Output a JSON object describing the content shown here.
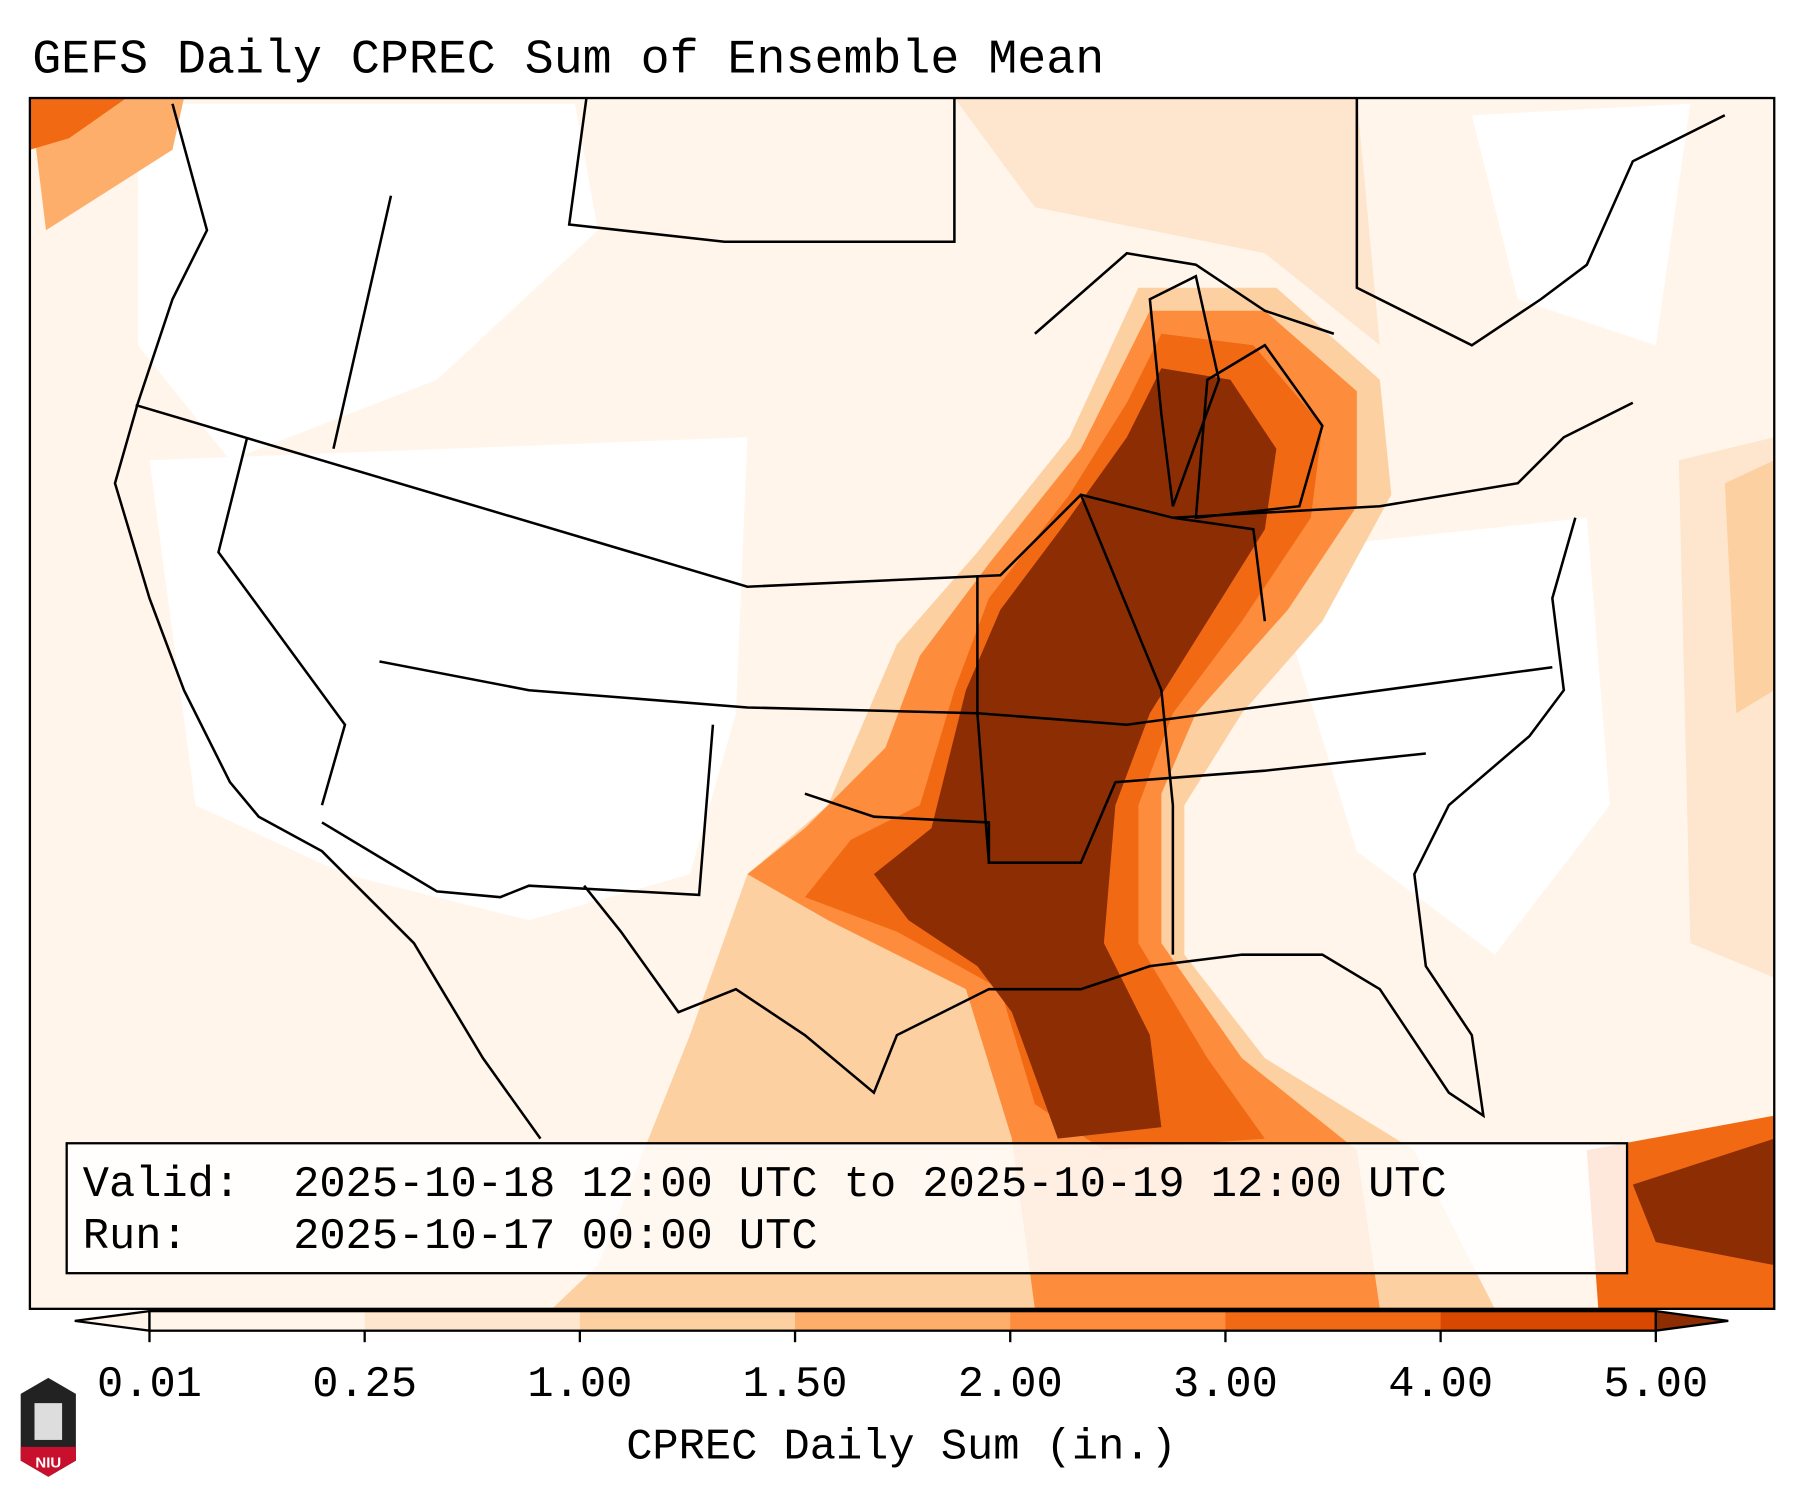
{
  "title": "GEFS Daily CPREC Sum of Ensemble Mean",
  "info_box": {
    "valid_label": "Valid:",
    "valid_value": "2025-10-18 12:00 UTC to 2025-10-19 12:00 UTC",
    "run_label": "Run:",
    "run_value": "2025-10-17 00:00 UTC"
  },
  "colorbar": {
    "label": "CPREC Daily Sum (in.)",
    "ticks": [
      "0.01",
      "0.25",
      "1.00",
      "1.50",
      "2.00",
      "3.00",
      "4.00",
      "5.00"
    ],
    "colors": [
      "#fff5eb",
      "#fee6ce",
      "#fdd0a2",
      "#fdae6b",
      "#fd8d3c",
      "#f16913",
      "#d94801",
      "#8c2d04"
    ]
  },
  "logo": {
    "text": "NIU"
  }
}
